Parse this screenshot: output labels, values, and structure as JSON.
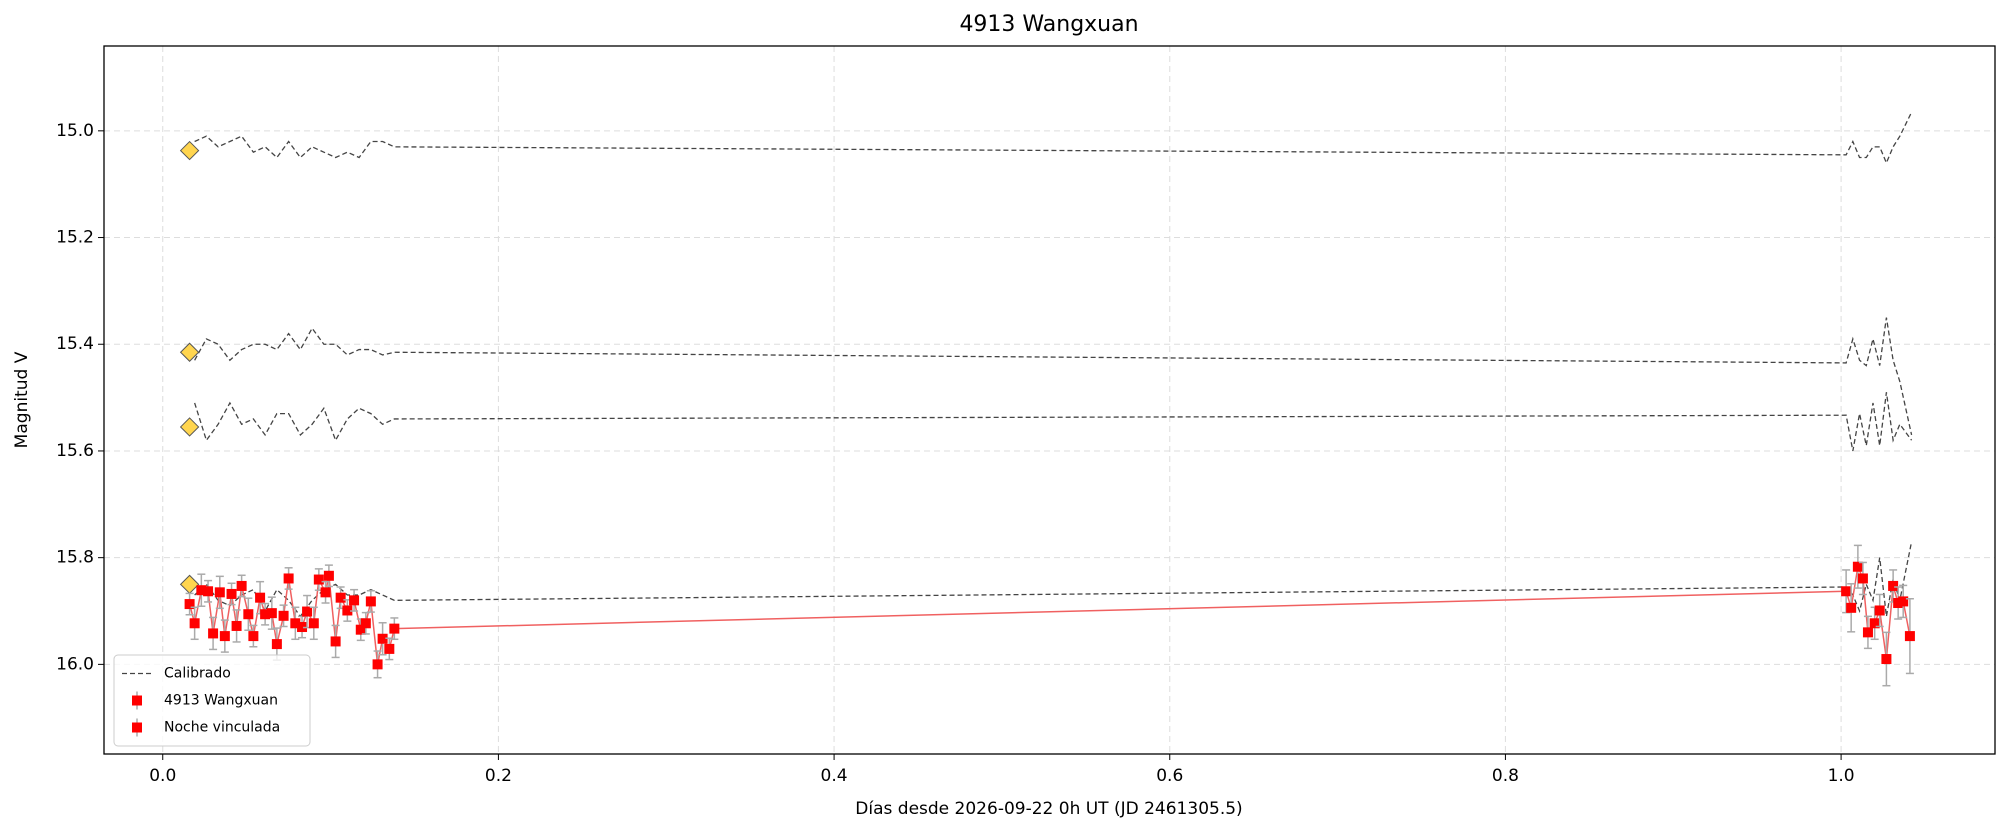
{
  "chart_data": {
    "type": "line",
    "title": "4913 Wangxuan",
    "xlabel": "Días desde 2026-09-22 0h UT (JD 2461305.5)",
    "ylabel": "Magnitud V",
    "xlim": [
      -0.035,
      1.0917
    ],
    "ylim": [
      16.168,
      14.841
    ],
    "xticks": [
      {
        "value": 0,
        "label": "0.0"
      },
      0.2,
      0.4,
      0.6,
      0.8,
      {
        "value": 1,
        "label": "1.0"
      }
    ],
    "yticks": [
      {
        "value": 15,
        "label": "15.0"
      },
      15.2,
      15.4,
      15.6,
      15.8,
      {
        "value": 16,
        "label": "16.0"
      }
    ],
    "grid": true,
    "legend": "lower left",
    "series": [
      {
        "name": "Calibrado",
        "color": "#444444",
        "style": "dashed",
        "x": [
          0.019,
          0.026,
          0.033,
          0.04,
          0.047,
          0.054,
          0.061,
          0.068,
          0.075,
          0.082,
          0.089,
          0.096,
          0.103,
          0.11,
          0.117,
          0.124,
          0.131,
          0.138,
          1.003,
          1.007,
          1.011,
          1.015,
          1.019,
          1.023,
          1.027,
          1.031,
          1.035,
          1.042
        ],
        "values": [
          15.02,
          15.01,
          15.03,
          15.02,
          15.01,
          15.04,
          15.03,
          15.05,
          15.02,
          15.05,
          15.03,
          15.04,
          15.05,
          15.04,
          15.05,
          15.02,
          15.02,
          15.03,
          15.045,
          15.02,
          15.05,
          15.05,
          15.03,
          15.03,
          15.06,
          15.03,
          15.01,
          14.965
        ]
      },
      {
        "color": "#444444",
        "style": "dashed",
        "x": [
          0.019,
          0.026,
          0.033,
          0.04,
          0.047,
          0.054,
          0.061,
          0.068,
          0.075,
          0.082,
          0.089,
          0.096,
          0.103,
          0.11,
          0.117,
          0.124,
          0.131,
          0.138,
          1.003,
          1.007,
          1.011,
          1.015,
          1.019,
          1.023,
          1.027,
          1.031,
          1.035,
          1.042
        ],
        "values": [
          15.43,
          15.39,
          15.4,
          15.43,
          15.41,
          15.4,
          15.4,
          15.41,
          15.38,
          15.41,
          15.37,
          15.4,
          15.4,
          15.42,
          15.41,
          15.41,
          15.42,
          15.415,
          15.435,
          15.39,
          15.43,
          15.44,
          15.39,
          15.44,
          15.35,
          15.43,
          15.47,
          15.57
        ]
      },
      {
        "color": "#444444",
        "style": "dashed",
        "x": [
          0.019,
          0.026,
          0.033,
          0.04,
          0.047,
          0.054,
          0.061,
          0.068,
          0.075,
          0.082,
          0.089,
          0.096,
          0.103,
          0.11,
          0.117,
          0.124,
          0.131,
          0.138,
          1.003,
          1.007,
          1.011,
          1.015,
          1.019,
          1.023,
          1.027,
          1.031,
          1.035,
          1.042
        ],
        "values": [
          15.51,
          15.58,
          15.55,
          15.51,
          15.55,
          15.54,
          15.57,
          15.53,
          15.53,
          15.57,
          15.55,
          15.52,
          15.58,
          15.54,
          15.52,
          15.53,
          15.55,
          15.54,
          15.533,
          15.6,
          15.53,
          15.59,
          15.51,
          15.59,
          15.49,
          15.58,
          15.55,
          15.58
        ]
      },
      {
        "color": "#444444",
        "style": "dashed",
        "x": [
          0.019,
          0.026,
          0.033,
          0.04,
          0.047,
          0.054,
          0.061,
          0.068,
          0.075,
          0.082,
          0.089,
          0.096,
          0.103,
          0.11,
          0.117,
          0.124,
          0.131,
          0.138,
          1.003,
          1.007,
          1.011,
          1.015,
          1.019,
          1.023,
          1.027,
          1.031,
          1.035,
          1.042
        ],
        "values": [
          15.87,
          15.85,
          15.88,
          15.89,
          15.87,
          15.86,
          15.9,
          15.86,
          15.88,
          15.91,
          15.88,
          15.86,
          15.85,
          15.87,
          15.87,
          15.86,
          15.87,
          15.88,
          15.855,
          15.87,
          15.9,
          15.85,
          15.88,
          15.8,
          15.91,
          15.84,
          15.88,
          15.77
        ]
      },
      {
        "color": "#ffd54f",
        "style": "diamond",
        "x": [
          0.016,
          0.016,
          0.016,
          0.016
        ],
        "values": [
          15.037,
          15.415,
          15.555,
          15.85
        ]
      },
      {
        "name": "4913 Wangxuan",
        "color": "#ff0000",
        "line_color": "#f06060",
        "error_color": "#aaaaaa",
        "style": "square",
        "x": [
          0.016,
          0.019,
          0.023,
          0.027,
          0.03,
          0.034,
          0.037,
          0.041,
          0.044,
          0.047,
          0.051,
          0.054,
          0.058,
          0.061,
          0.065,
          0.068,
          0.072,
          0.075,
          0.079,
          0.083,
          0.086,
          0.09,
          0.093,
          0.097,
          0.099,
          0.103,
          0.106,
          0.11,
          0.114,
          0.118,
          0.121,
          0.124,
          0.128,
          0.131,
          0.135,
          0.138
        ],
        "values": [
          15.887,
          15.923,
          15.861,
          15.863,
          15.942,
          15.865,
          15.947,
          15.868,
          15.928,
          15.853,
          15.906,
          15.947,
          15.875,
          15.906,
          15.904,
          15.962,
          15.909,
          15.839,
          15.923,
          15.93,
          15.901,
          15.923,
          15.841,
          15.865,
          15.834,
          15.957,
          15.875,
          15.899,
          15.88,
          15.935,
          15.923,
          15.882,
          16.0,
          15.952,
          15.971,
          15.933
        ],
        "errors": [
          0.02,
          0.03,
          0.03,
          0.02,
          0.03,
          0.03,
          0.03,
          0.02,
          0.03,
          0.02,
          0.03,
          0.02,
          0.03,
          0.02,
          0.03,
          0.03,
          0.02,
          0.02,
          0.03,
          0.02,
          0.03,
          0.03,
          0.02,
          0.02,
          0.02,
          0.03,
          0.02,
          0.02,
          0.02,
          0.02,
          0.02,
          0.02,
          0.025,
          0.03,
          0.02,
          0.02
        ]
      },
      {
        "name": "Noche vinculada",
        "color": "#ff0000",
        "line_color": "#f06060",
        "error_color": "#aaaaaa",
        "style": "square",
        "x": [
          1.003,
          1.006,
          1.01,
          1.013,
          1.016,
          1.02,
          1.023,
          1.027,
          1.031,
          1.034,
          1.037,
          1.041
        ],
        "values": [
          15.863,
          15.894,
          15.817,
          15.839,
          15.94,
          15.923,
          15.899,
          15.99,
          15.853,
          15.885,
          15.882,
          15.947
        ],
        "errors": [
          0.04,
          0.045,
          0.04,
          0.03,
          0.03,
          0.03,
          0.03,
          0.05,
          0.03,
          0.03,
          0.03,
          0.07
        ]
      }
    ]
  }
}
